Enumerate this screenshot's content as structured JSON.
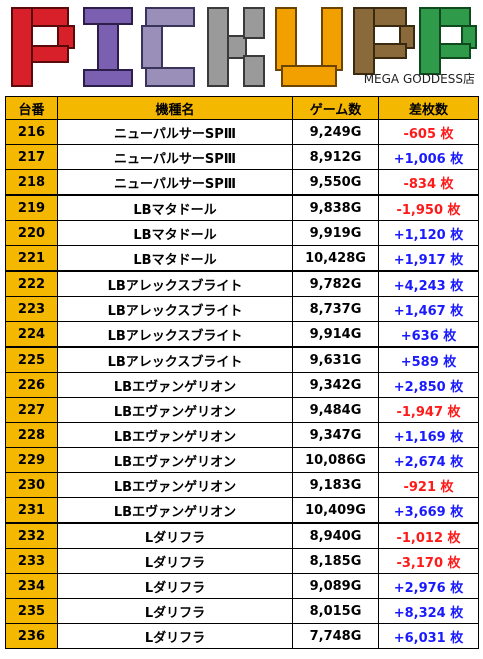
{
  "banner": {
    "logo_text": "PICKUP",
    "store": "MEGA GODDESS店"
  },
  "columns": [
    "台番",
    "機種名",
    "ゲーム数",
    "差枚数"
  ],
  "rows": [
    {
      "no": "216",
      "name": "ニューパルサーSPⅢ",
      "games": "9,249G",
      "diff": "-605 枚",
      "sign": "neg"
    },
    {
      "no": "217",
      "name": "ニューパルサーSPⅢ",
      "games": "8,912G",
      "diff": "+1,006 枚",
      "sign": "pos"
    },
    {
      "no": "218",
      "name": "ニューパルサーSPⅢ",
      "games": "9,550G",
      "diff": "-834 枚",
      "sign": "neg"
    },
    {
      "no": "219",
      "name": "LBマタドール",
      "games": "9,838G",
      "diff": "-1,950 枚",
      "sign": "neg"
    },
    {
      "no": "220",
      "name": "LBマタドール",
      "games": "9,919G",
      "diff": "+1,120 枚",
      "sign": "pos"
    },
    {
      "no": "221",
      "name": "LBマタドール",
      "games": "10,428G",
      "diff": "+1,917 枚",
      "sign": "pos"
    },
    {
      "no": "222",
      "name": "LBアレックスブライト",
      "games": "9,782G",
      "diff": "+4,243 枚",
      "sign": "pos"
    },
    {
      "no": "223",
      "name": "LBアレックスブライト",
      "games": "8,737G",
      "diff": "+1,467 枚",
      "sign": "pos"
    },
    {
      "no": "224",
      "name": "LBアレックスブライト",
      "games": "9,914G",
      "diff": "+636 枚",
      "sign": "pos"
    },
    {
      "no": "225",
      "name": "LBアレックスブライト",
      "games": "9,631G",
      "diff": "+589 枚",
      "sign": "pos"
    },
    {
      "no": "226",
      "name": "LBエヴァンゲリオン",
      "games": "9,342G",
      "diff": "+2,850 枚",
      "sign": "pos"
    },
    {
      "no": "227",
      "name": "LBエヴァンゲリオン",
      "games": "9,484G",
      "diff": "-1,947 枚",
      "sign": "neg"
    },
    {
      "no": "228",
      "name": "LBエヴァンゲリオン",
      "games": "9,347G",
      "diff": "+1,169 枚",
      "sign": "pos"
    },
    {
      "no": "229",
      "name": "LBエヴァンゲリオン",
      "games": "10,086G",
      "diff": "+2,674 枚",
      "sign": "pos"
    },
    {
      "no": "230",
      "name": "LBエヴァンゲリオン",
      "games": "9,183G",
      "diff": "-921 枚",
      "sign": "neg"
    },
    {
      "no": "231",
      "name": "LBエヴァンゲリオン",
      "games": "10,409G",
      "diff": "+3,669 枚",
      "sign": "pos"
    },
    {
      "no": "232",
      "name": "Lダリフラ",
      "games": "8,940G",
      "diff": "-1,012 枚",
      "sign": "neg"
    },
    {
      "no": "233",
      "name": "Lダリフラ",
      "games": "8,185G",
      "diff": "-3,170 枚",
      "sign": "neg"
    },
    {
      "no": "234",
      "name": "Lダリフラ",
      "games": "9,089G",
      "diff": "+2,976 枚",
      "sign": "pos"
    },
    {
      "no": "235",
      "name": "Lダリフラ",
      "games": "8,015G",
      "diff": "+8,324 枚",
      "sign": "pos"
    },
    {
      "no": "236",
      "name": "Lダリフラ",
      "games": "7,748G",
      "diff": "+6,031 枚",
      "sign": "pos"
    }
  ],
  "colors": {
    "header_bg": "#f5b800",
    "negative": "#ff1a1a",
    "positive": "#1a1aff",
    "logo": [
      "#d8202a",
      "#7b5fb0",
      "#9a9a9a",
      "#f2a000",
      "#8a6a3a",
      "#2e9a4a"
    ]
  },
  "group_end_rows": [
    "218",
    "221",
    "224",
    "231"
  ]
}
